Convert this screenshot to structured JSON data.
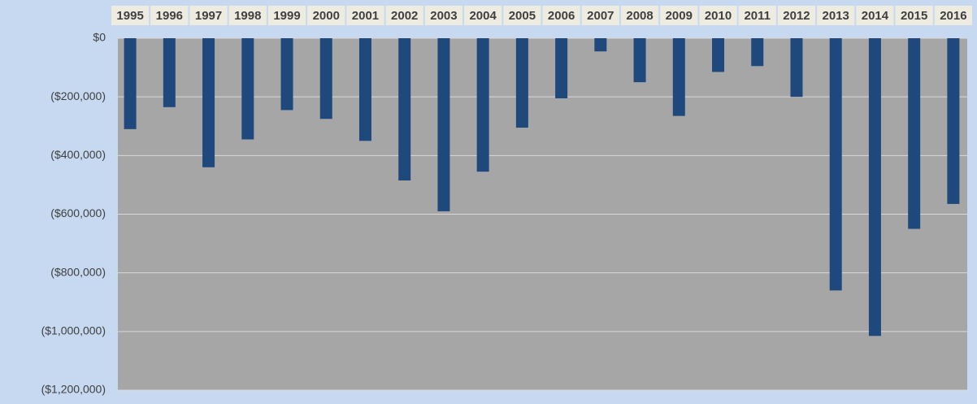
{
  "chart_data": {
    "type": "bar",
    "categories": [
      "1995",
      "1996",
      "1997",
      "1998",
      "1999",
      "2000",
      "2001",
      "2002",
      "2003",
      "2004",
      "2005",
      "2006",
      "2007",
      "2008",
      "2009",
      "2010",
      "2011",
      "2012",
      "2013",
      "2014",
      "2015",
      "2016"
    ],
    "values": [
      -310000,
      -235000,
      -440000,
      -345000,
      -245000,
      -275000,
      -350000,
      -485000,
      -590000,
      -455000,
      -305000,
      -205000,
      -45000,
      -150000,
      -265000,
      -115000,
      -95000,
      -200000,
      -860000,
      -1015000,
      -650000,
      -565000
    ],
    "color": "#1f497d",
    "ylim": [
      -1200000,
      0
    ],
    "yticks": [
      {
        "value": 0,
        "label": "$0"
      },
      {
        "value": -200000,
        "label": "($200,000)"
      },
      {
        "value": -400000,
        "label": "($400,000)"
      },
      {
        "value": -600000,
        "label": "($600,000)"
      },
      {
        "value": -800000,
        "label": "($800,000)"
      },
      {
        "value": -1000000,
        "label": "($1,000,000)"
      },
      {
        "value": -1200000,
        "label": "($1,200,000)"
      }
    ],
    "grid": true
  }
}
